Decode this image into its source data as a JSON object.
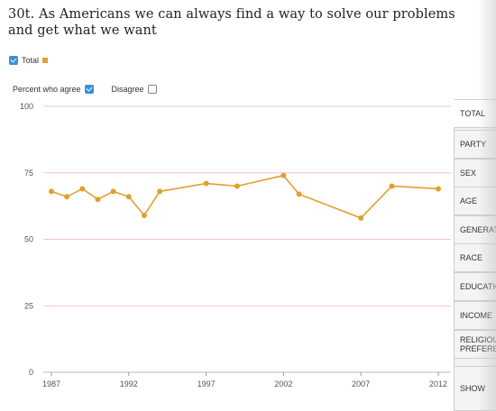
{
  "title": "30t. As Americans we can always find a way to solve our problems and get what we want",
  "legend": {
    "total_label": "Total"
  },
  "filters": {
    "agree_label": "Percent who agree",
    "disagree_label": "Disagree"
  },
  "tabs": [
    {
      "label": "TOTAL",
      "active": true
    },
    {
      "label": "PARTY",
      "active": false
    },
    {
      "label": "SEX",
      "active": false
    },
    {
      "label": "AGE",
      "active": false
    },
    {
      "label": "GENERATION",
      "active": false
    },
    {
      "label": "RACE",
      "active": false
    },
    {
      "label": "EDUCATION",
      "active": false
    },
    {
      "label": "INCOME",
      "active": false
    },
    {
      "label": "RELIGIOUS PREFERENCE",
      "active": false
    },
    {
      "label": "SHOW",
      "active": false
    }
  ],
  "colors": {
    "series": "#e0a030",
    "checkbox": "#3d8fd6",
    "grid": "#f3c7c7"
  },
  "chart_data": {
    "type": "line",
    "title": "30t. As Americans we can always find a way to solve our problems and get what we want",
    "xlabel": "",
    "ylabel": "",
    "xlim": [
      1987,
      2012
    ],
    "ylim": [
      0,
      100
    ],
    "x_ticks": [
      1987,
      1992,
      1997,
      2002,
      2007,
      2012
    ],
    "y_ticks": [
      0,
      25,
      50,
      75,
      100
    ],
    "grid": true,
    "series": [
      {
        "name": "Total",
        "x": [
          1987,
          1988,
          1989,
          1990,
          1991,
          1992,
          1993,
          1994,
          1997,
          1999,
          2002,
          2003,
          2007,
          2009,
          2012
        ],
        "values": [
          68,
          66,
          69,
          65,
          68,
          66,
          59,
          68,
          71,
          70,
          74,
          67,
          58,
          70,
          69
        ]
      }
    ]
  }
}
